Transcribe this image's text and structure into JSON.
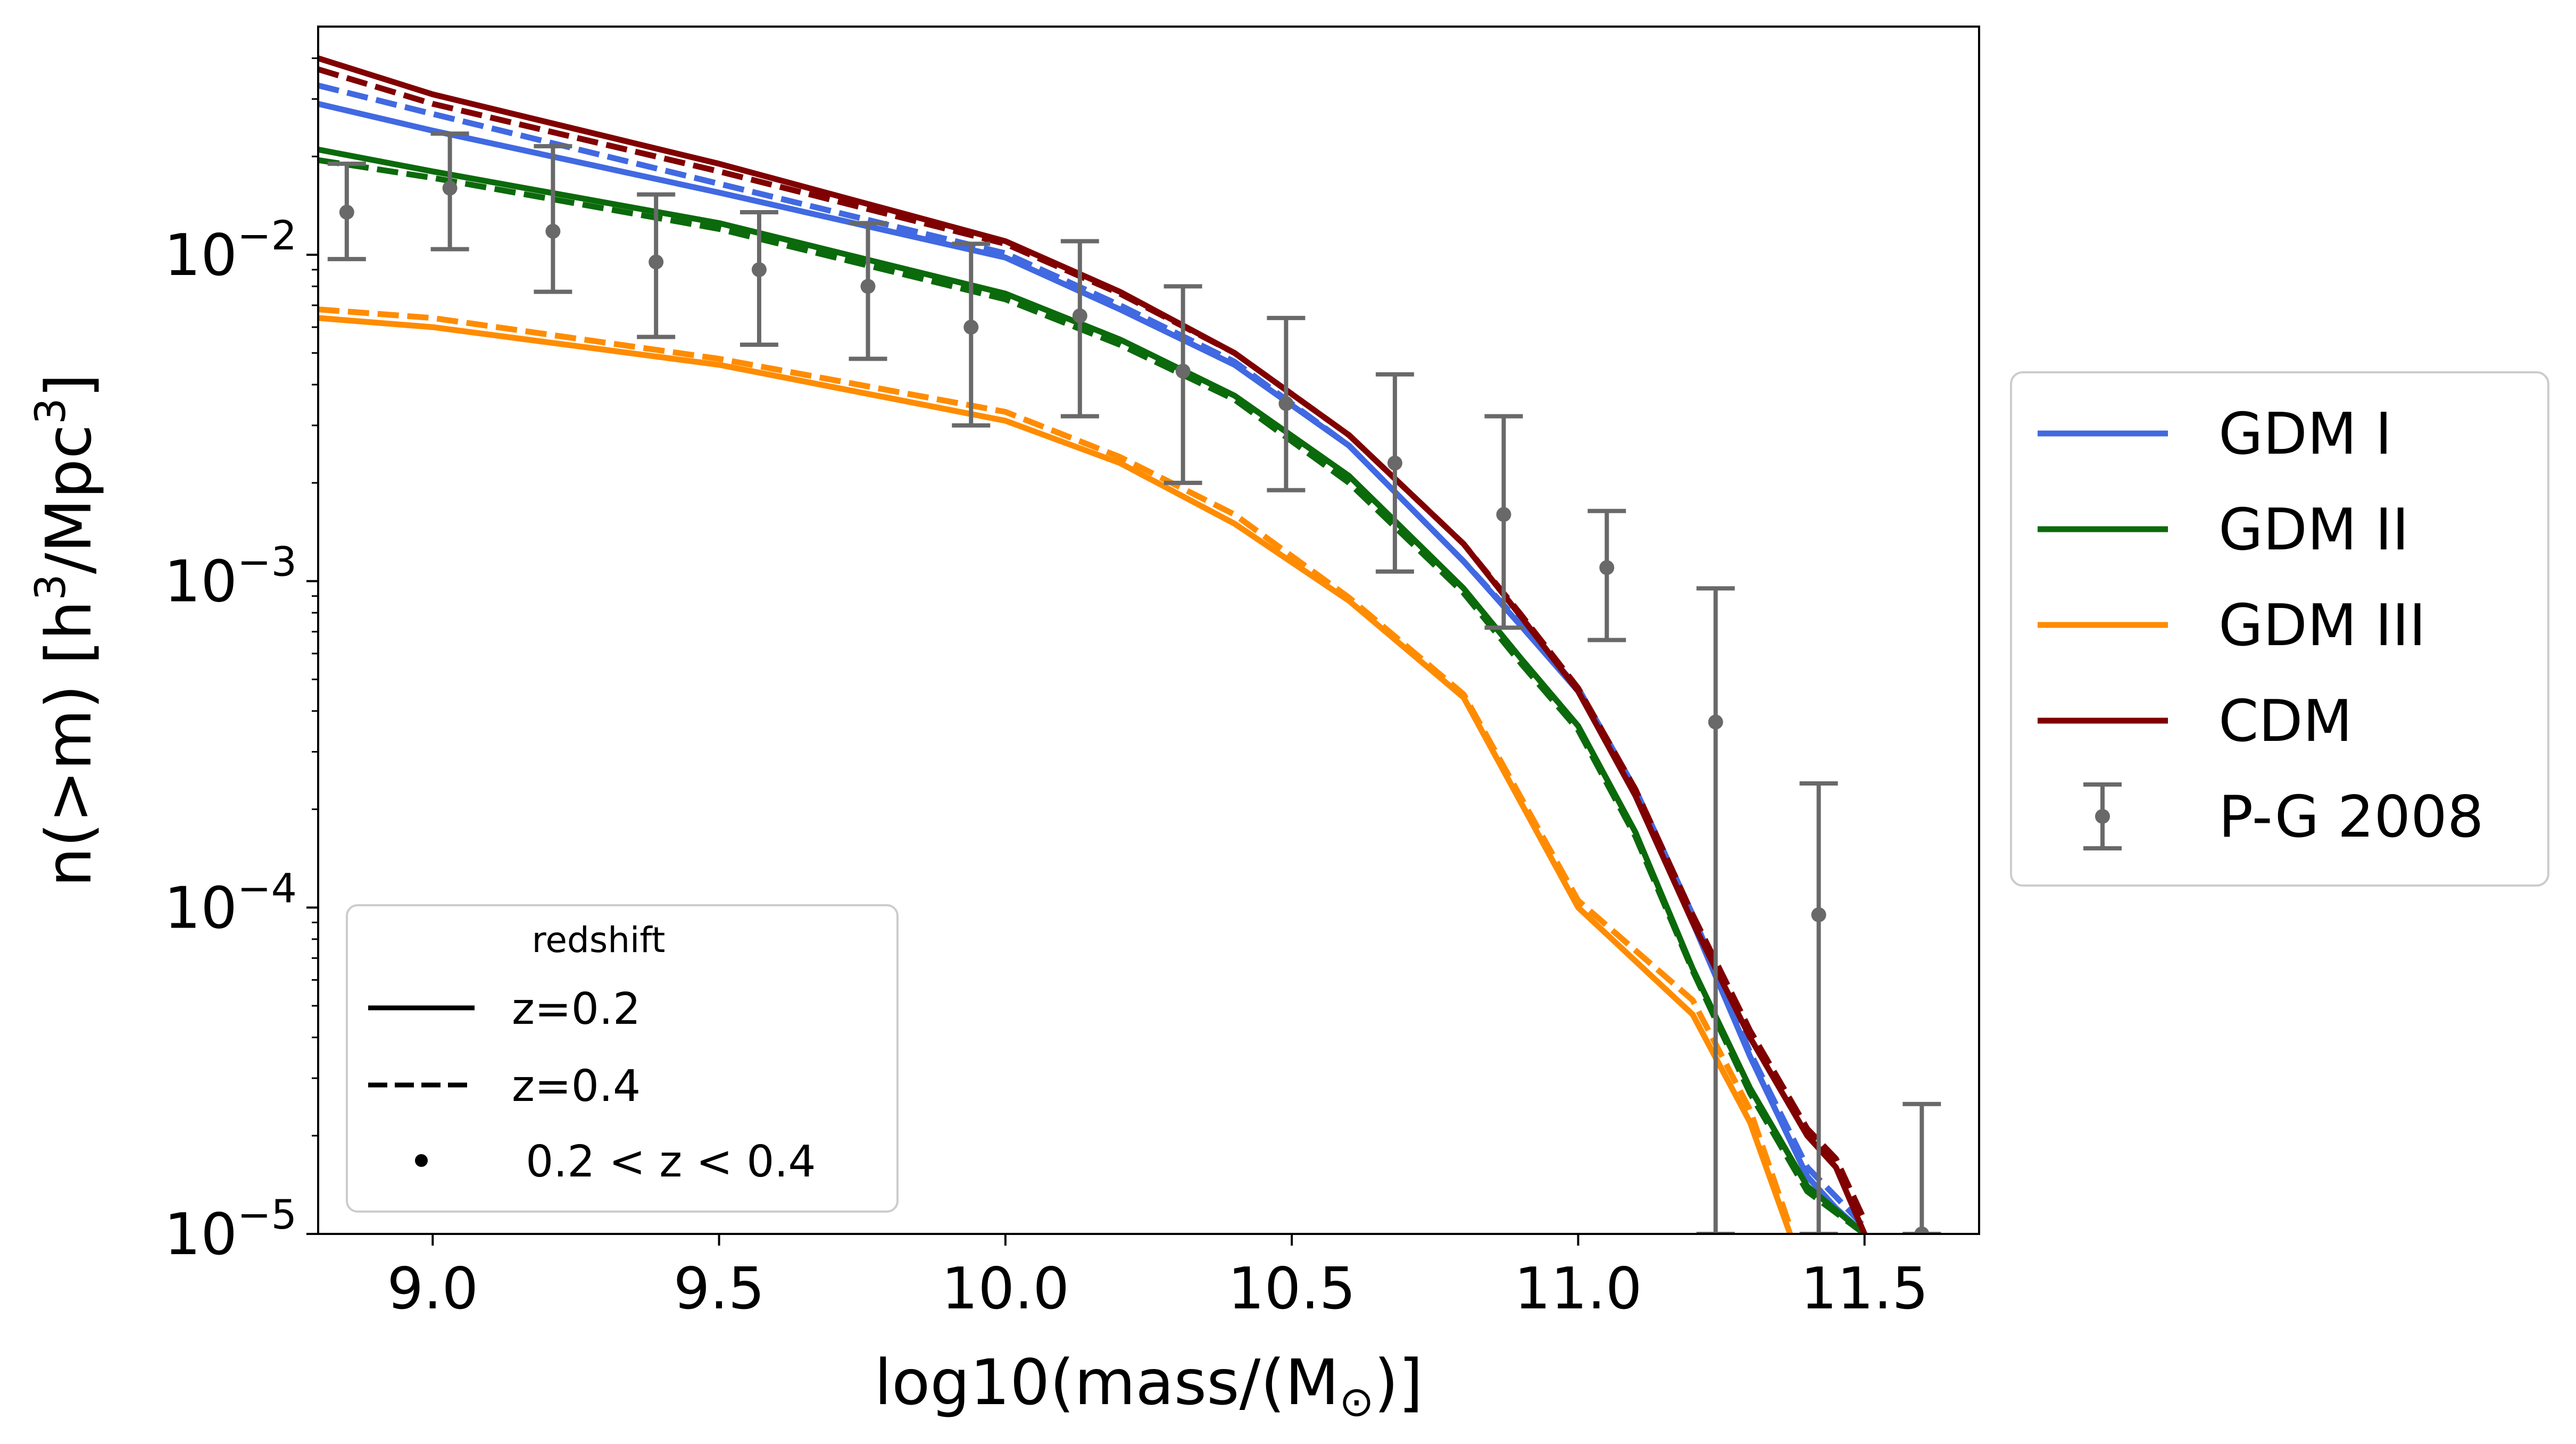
{
  "chart_data": {
    "type": "line",
    "title": "",
    "xlabel": "log10(mass/(M⊙)]",
    "ylabel": "n(>m) [h³/Mpc³]",
    "xlim": [
      8.8,
      11.7
    ],
    "ylim": [
      1e-05,
      0.05
    ],
    "y_scale": "log",
    "grid": false,
    "xticks": [
      9.0,
      9.5,
      10.0,
      10.5,
      11.0,
      11.5
    ],
    "xtick_labels": [
      "9.0",
      "9.5",
      "10.0",
      "10.5",
      "11.0",
      "11.5"
    ],
    "yticks": [
      1e-05,
      0.0001,
      0.001,
      0.01
    ],
    "ytick_labels": [
      {
        "base": "10",
        "exp": "−5"
      },
      {
        "base": "10",
        "exp": "−4"
      },
      {
        "base": "10",
        "exp": "−3"
      },
      {
        "base": "10",
        "exp": "−2"
      }
    ],
    "legend_position": "outside right",
    "series": [
      {
        "name": "GDM I",
        "color": "#4169e1",
        "redshift": "z=0.2",
        "x": [
          8.8,
          9.0,
          9.5,
          10.0,
          10.2,
          10.4,
          10.6,
          10.8,
          10.9,
          11.0,
          11.1,
          11.2,
          11.3,
          11.4,
          11.45,
          11.5
        ],
        "y": [
          0.029,
          0.024,
          0.0155,
          0.0098,
          0.0068,
          0.0046,
          0.0026,
          0.00115,
          0.00073,
          0.00046,
          0.00022,
          9e-05,
          3.5e-05,
          1.5e-05,
          1.2e-05,
          1e-05
        ]
      },
      {
        "name": "GDM I",
        "color": "#4169e1",
        "redshift": "z=0.4",
        "x": [
          8.8,
          9.0,
          9.5,
          10.0,
          10.2,
          10.4,
          10.6,
          10.8,
          10.9,
          11.0,
          11.1,
          11.2,
          11.3,
          11.4,
          11.45,
          11.5
        ],
        "y": [
          0.033,
          0.027,
          0.0165,
          0.0101,
          0.007,
          0.0047,
          0.0026,
          0.00115,
          0.00074,
          0.00047,
          0.00023,
          9.5e-05,
          3.6e-05,
          1.6e-05,
          1.3e-05,
          1.05e-05
        ]
      },
      {
        "name": "GDM II",
        "color": "#0b6a0b",
        "redshift": "z=0.2",
        "x": [
          8.8,
          9.0,
          9.5,
          10.0,
          10.2,
          10.4,
          10.6,
          10.8,
          10.9,
          11.0,
          11.1,
          11.2,
          11.3,
          11.4,
          11.5
        ],
        "y": [
          0.021,
          0.018,
          0.0125,
          0.0076,
          0.0055,
          0.0037,
          0.0021,
          0.00095,
          0.00058,
          0.00036,
          0.00017,
          6.5e-05,
          2.8e-05,
          1.4e-05,
          1e-05
        ]
      },
      {
        "name": "GDM II",
        "color": "#0b6a0b",
        "redshift": "z=0.4",
        "x": [
          8.8,
          9.0,
          9.5,
          10.0,
          10.2,
          10.4,
          10.6,
          10.8,
          10.9,
          11.0,
          11.1,
          11.2,
          11.3,
          11.4,
          11.5
        ],
        "y": [
          0.0195,
          0.0172,
          0.012,
          0.0073,
          0.0053,
          0.0036,
          0.002,
          0.00092,
          0.00056,
          0.00035,
          0.000165,
          6.4e-05,
          2.7e-05,
          1.35e-05,
          1e-05
        ]
      },
      {
        "name": "GDM III",
        "color": "#ff8c00",
        "redshift": "z=0.2",
        "x": [
          8.8,
          9.0,
          9.5,
          10.0,
          10.2,
          10.4,
          10.6,
          10.8,
          11.0,
          11.2,
          11.3,
          11.37
        ],
        "y": [
          0.0064,
          0.006,
          0.0046,
          0.0031,
          0.0023,
          0.0015,
          0.00087,
          0.00044,
          0.0001,
          4.7e-05,
          2.2e-05,
          1e-05
        ]
      },
      {
        "name": "GDM III",
        "color": "#ff8c00",
        "redshift": "z=0.4",
        "x": [
          8.8,
          9.0,
          9.5,
          10.0,
          10.2,
          10.4,
          10.6,
          10.8,
          11.0,
          11.2,
          11.3,
          11.37
        ],
        "y": [
          0.0068,
          0.0064,
          0.0048,
          0.0033,
          0.0024,
          0.0016,
          0.00089,
          0.00045,
          0.000105,
          5.2e-05,
          2.4e-05,
          1.05e-05
        ]
      },
      {
        "name": "CDM",
        "color": "#800000",
        "redshift": "z=0.2",
        "x": [
          8.8,
          9.0,
          9.5,
          10.0,
          10.2,
          10.4,
          10.6,
          10.8,
          10.9,
          11.0,
          11.1,
          11.2,
          11.3,
          11.4,
          11.45,
          11.5
        ],
        "y": [
          0.04,
          0.031,
          0.019,
          0.011,
          0.0077,
          0.005,
          0.0028,
          0.0013,
          0.00078,
          0.00046,
          0.00022,
          9e-05,
          4e-05,
          2e-05,
          1.6e-05,
          1e-05
        ]
      },
      {
        "name": "CDM",
        "color": "#800000",
        "redshift": "z=0.4",
        "x": [
          8.8,
          9.0,
          9.5,
          10.0,
          10.2,
          10.4,
          10.6,
          10.8,
          10.9,
          11.0,
          11.1,
          11.2,
          11.3,
          11.4,
          11.45,
          11.5
        ],
        "y": [
          0.037,
          0.029,
          0.018,
          0.0108,
          0.0076,
          0.005,
          0.0028,
          0.0013,
          0.00079,
          0.00047,
          0.00023,
          9.5e-05,
          4.2e-05,
          2.1e-05,
          1.7e-05,
          1.1e-05
        ]
      }
    ],
    "observations": {
      "name": "P-G 2008",
      "color": "#696969",
      "redshift": "0.2 < z < 0.4",
      "x": [
        8.85,
        9.03,
        9.21,
        9.39,
        9.57,
        9.76,
        9.94,
        10.13,
        10.31,
        10.49,
        10.68,
        10.87,
        11.05,
        11.24,
        11.42,
        11.6
      ],
      "y": [
        0.0135,
        0.016,
        0.0118,
        0.0095,
        0.009,
        0.008,
        0.006,
        0.0065,
        0.0044,
        0.0035,
        0.0023,
        0.0016,
        0.0011,
        0.00037,
        9.5e-05,
        1e-05
      ],
      "y_low": [
        0.0097,
        0.0104,
        0.0077,
        0.0056,
        0.0053,
        0.0048,
        0.003,
        0.0032,
        0.002,
        0.0019,
        0.00107,
        0.00072,
        0.00066,
        1e-05,
        1e-05,
        1e-05
      ],
      "y_high": [
        0.019,
        0.0235,
        0.0215,
        0.0153,
        0.0135,
        0.0125,
        0.0108,
        0.011,
        0.008,
        0.0064,
        0.0043,
        0.0032,
        0.00164,
        0.00095,
        0.00024,
        2.5e-05
      ]
    },
    "legend_entries": [
      "GDM I",
      "GDM II",
      "GDM III",
      "CDM",
      "P-G 2008"
    ],
    "redshift_legend": {
      "title": "redshift",
      "entries": [
        "z=0.2",
        "z=0.4",
        " 0.2 < z < 0.4"
      ]
    }
  }
}
